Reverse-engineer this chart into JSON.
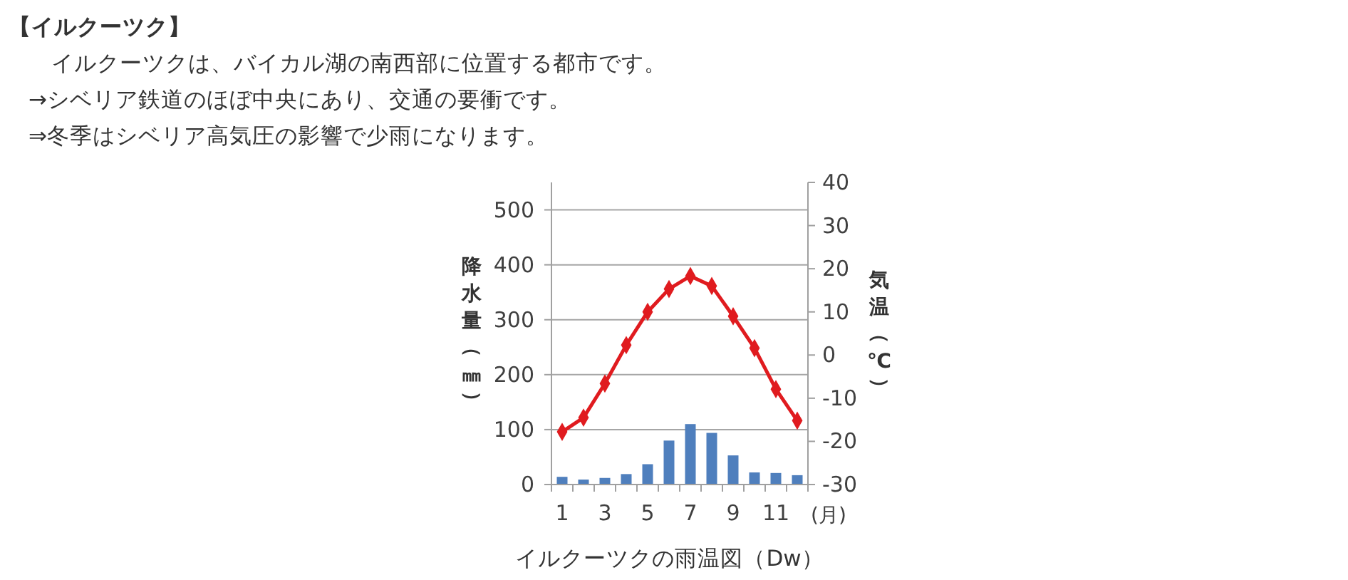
{
  "chart_data": {
    "type": "bar",
    "title": "イルクーツクの雨温図（Dw）",
    "annotations": [
      "【イルクーツク】",
      "　イルクーツクは、バイカル湖の南西部に位置する都市です。",
      "→シベリア鉄道のほぼ中央にあり、交通の要衝です。",
      "⇒冬季はシベリア高気圧の影響で少雨になります。"
    ],
    "categories": [
      "1",
      null,
      "3",
      null,
      "5",
      null,
      "7",
      null,
      "9",
      null,
      "11",
      null
    ],
    "xlabel": "(月)",
    "ylabel": "降水量（㎜）",
    "y2label": "気温（℃）",
    "series": [
      {
        "color": "#4f7fbd",
        "values": [
          14,
          9,
          12,
          19,
          37,
          80,
          110,
          94,
          53,
          22,
          21,
          17
        ]
      },
      {
        "type": "line",
        "axis": "y2",
        "color": "#e01b1f",
        "values": [
          -17.8,
          -14.5,
          -6.6,
          2.3,
          10,
          15.3,
          18.3,
          16,
          9,
          1.6,
          -7.9,
          -15.2
        ]
      }
    ],
    "ylim": [
      0,
      550
    ],
    "yticks": [
      0,
      100,
      200,
      300,
      400,
      500
    ],
    "y2lim": [
      -30,
      40
    ],
    "y2ticks": [
      -30,
      -20,
      -10,
      0,
      10,
      20,
      30,
      40
    ],
    "grid": "y",
    "marker": "diamond",
    "line_style": "solid"
  }
}
